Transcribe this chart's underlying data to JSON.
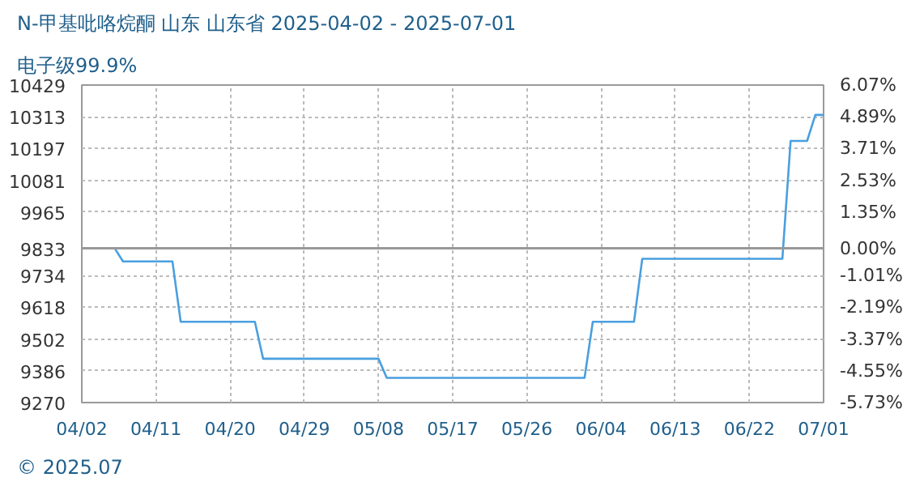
{
  "chart_data": {
    "type": "line",
    "title": "N-甲基吡咯烷酮 山东 山东省 2025-04-02 - 2025-07-01",
    "subtitle": "电子级99.9%",
    "annotations": [
      "© 2025.07"
    ],
    "x": [
      "2025-04-02",
      "2025-04-06",
      "2025-04-07",
      "2025-04-13",
      "2025-04-14",
      "2025-04-23",
      "2025-04-24",
      "2025-05-08",
      "2025-05-09",
      "2025-06-02",
      "2025-06-03",
      "2025-06-08",
      "2025-06-09",
      "2025-06-26",
      "2025-06-27",
      "2025-06-29",
      "2025-06-30",
      "2025-07-01"
    ],
    "series": [
      {
        "color": "#4a9fdf",
        "values": [
          9833,
          9833,
          9785,
          9785,
          9565,
          9565,
          9430,
          9430,
          9360,
          9360,
          9565,
          9565,
          9795,
          9795,
          10225,
          10225,
          10320,
          10320
        ]
      }
    ],
    "xlim": [
      "2025-04-02",
      "2025-07-01"
    ],
    "xticks": [
      {
        "value": "2025-04-02",
        "label": "04/02"
      },
      {
        "value": "2025-04-11",
        "label": "04/11"
      },
      {
        "value": "2025-04-20",
        "label": "04/20"
      },
      {
        "value": "2025-04-29",
        "label": "04/29"
      },
      {
        "value": "2025-05-08",
        "label": "05/08"
      },
      {
        "value": "2025-05-17",
        "label": "05/17"
      },
      {
        "value": "2025-05-26",
        "label": "05/26"
      },
      {
        "value": "2025-06-04",
        "label": "06/04"
      },
      {
        "value": "2025-06-13",
        "label": "06/13"
      },
      {
        "value": "2025-06-22",
        "label": "06/22"
      },
      {
        "value": "2025-07-01",
        "label": "07/01"
      }
    ],
    "ylim": [
      9270,
      10429
    ],
    "yticks": [
      9270,
      9386,
      9502,
      9618,
      9734,
      9833,
      9965,
      10081,
      10197,
      10313,
      10429
    ],
    "y2lim": [
      -5.73,
      6.07
    ],
    "y2ticks": [
      {
        "value": -5.73,
        "label": "-5.73%"
      },
      {
        "value": -4.55,
        "label": "-4.55%"
      },
      {
        "value": -3.37,
        "label": "-3.37%"
      },
      {
        "value": -2.19,
        "label": "-2.19%"
      },
      {
        "value": -1.01,
        "label": "-1.01%"
      },
      {
        "value": 0,
        "label": "0.00%"
      },
      {
        "value": 1.35,
        "label": "1.35%"
      },
      {
        "value": 2.53,
        "label": "2.53%"
      },
      {
        "value": 3.71,
        "label": "3.71%"
      },
      {
        "value": 4.89,
        "label": "4.89%"
      },
      {
        "value": 6.07,
        "label": "6.07%"
      }
    ],
    "ref_lines": [
      {
        "axis": "y",
        "value": 9833,
        "color": "#999999"
      }
    ],
    "grid": true,
    "line_style": "solid"
  }
}
